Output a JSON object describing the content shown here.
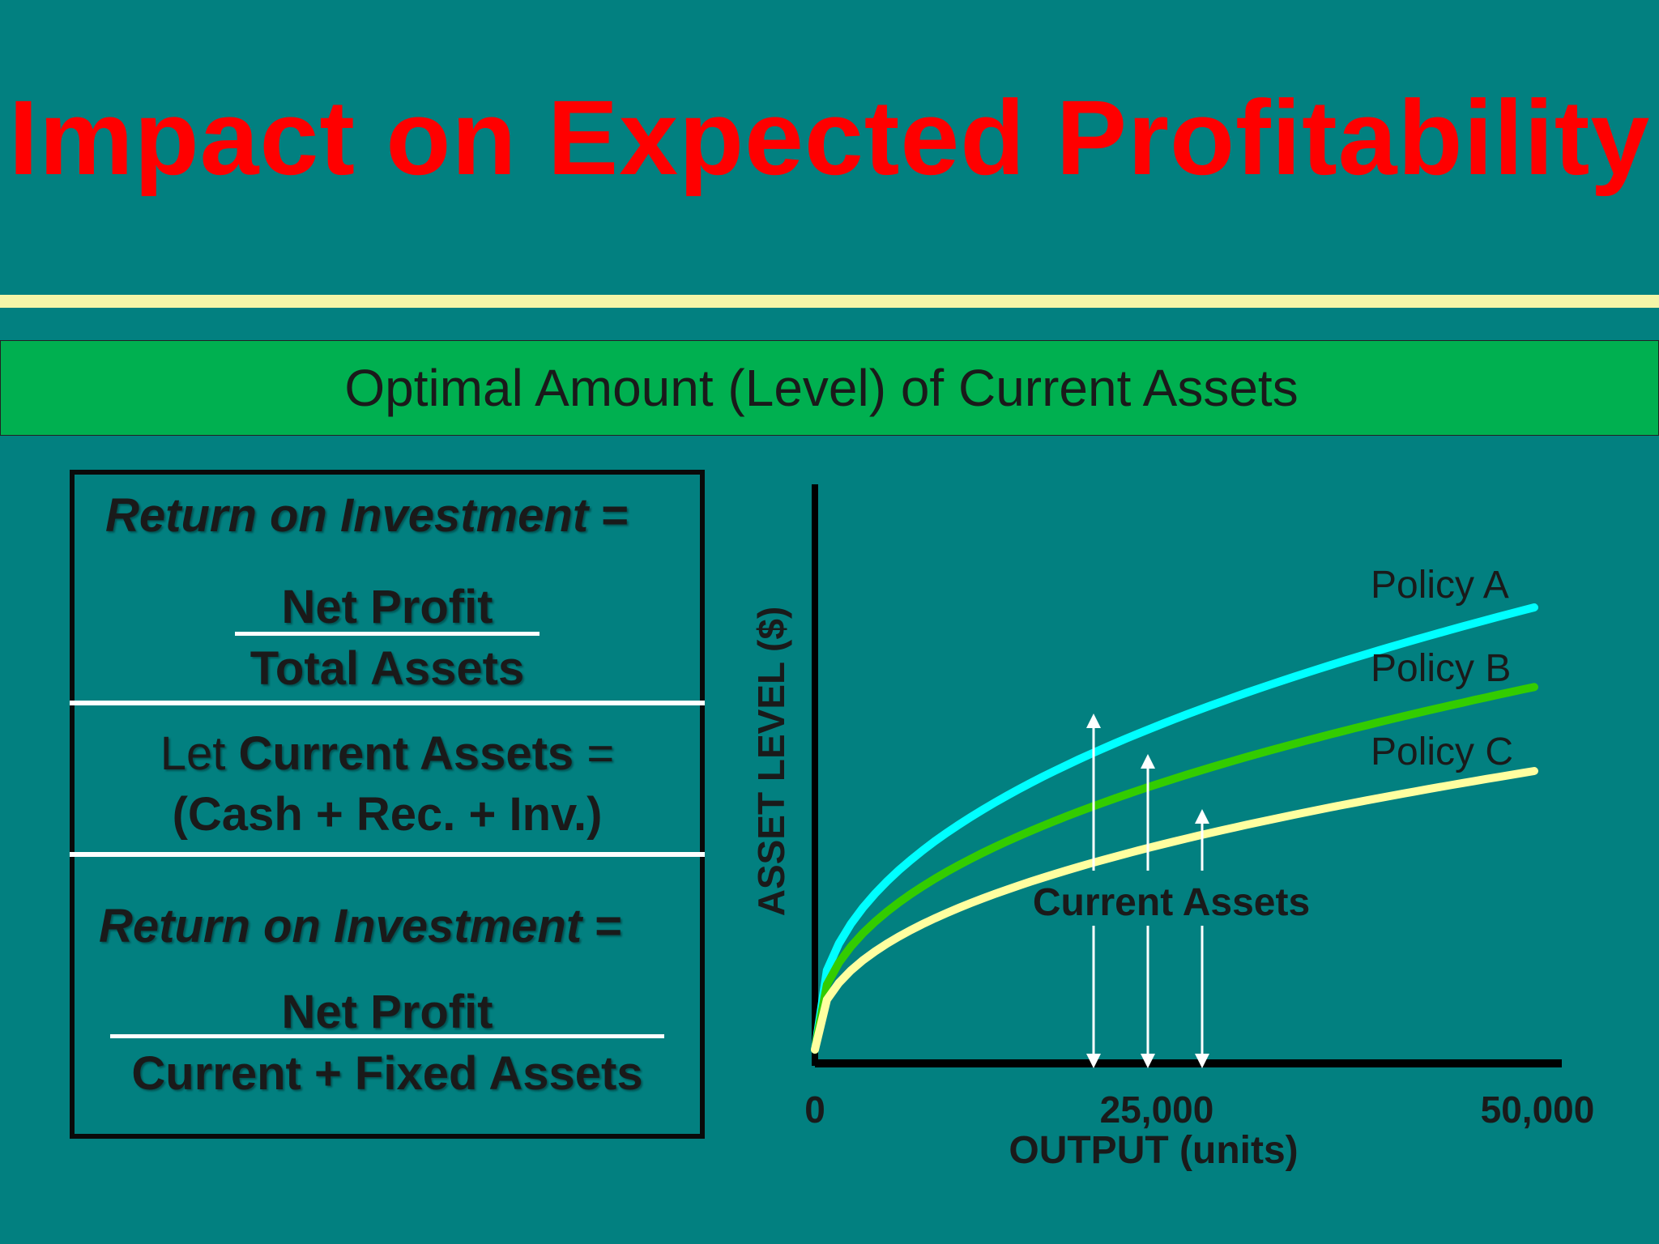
{
  "title": "Impact on Expected Profitability",
  "banner": "Optimal Amount (Level) of Current Assets",
  "formula_box": {
    "roi_1": {
      "term": "Return on Investment",
      "eq": "="
    },
    "frac_1": {
      "numerator": "Net Profit",
      "denominator": "Total Assets"
    },
    "let": {
      "prefix": "Let",
      "term": "Current Assets",
      "eq": "=",
      "definition": "(Cash + Rec. + Inv.)"
    },
    "roi_2": {
      "term": "Return on Investment",
      "eq": "="
    },
    "frac_2": {
      "numerator": "Net Profit",
      "denominator": "Current + Fixed Assets"
    }
  },
  "chart_data": {
    "type": "line",
    "xlabel": "OUTPUT (units)",
    "ylabel": "ASSET LEVEL ($)",
    "x_ticks": [
      "0",
      "25,000",
      "50,000"
    ],
    "xlim": [
      0,
      50000
    ],
    "series": [
      {
        "name": "Policy A",
        "color": "#00ffff",
        "relative_level": 1.0
      },
      {
        "name": "Policy B",
        "color": "#33cc00",
        "relative_level": 0.82
      },
      {
        "name": "Policy C",
        "color": "#ffffa0",
        "relative_level": 0.63
      }
    ],
    "annotation": "Current Assets"
  },
  "colors": {
    "background": "#028080",
    "title": "#ff0000",
    "rule": "#f5f5a8",
    "banner": "#00b050"
  }
}
